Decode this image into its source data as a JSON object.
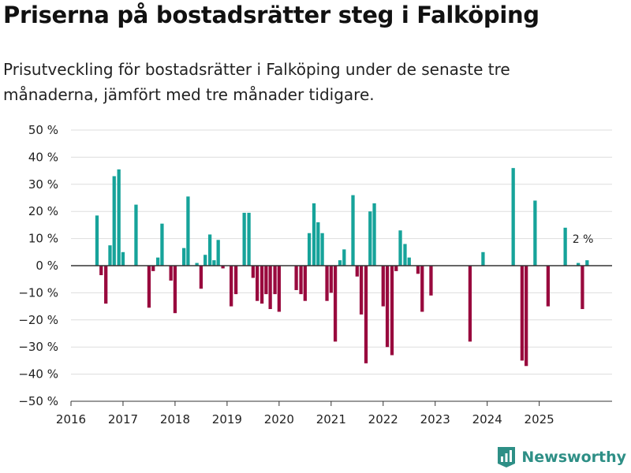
{
  "header": {
    "title": "Priserna på bostadsrätter steg i Falköping",
    "subtitle": "Prisutveckling för bostadsrätter i Falköping under de senaste tre månaderna, jämfört med tre månader tidigare."
  },
  "brand": {
    "name": "Newsworthy",
    "icon": "newsworthy-logo-icon"
  },
  "colors": {
    "positive": "#16a39a",
    "negative": "#990a3e",
    "brand": "#2e8f86",
    "grid": "#dddddd",
    "zero_line": "#333333"
  },
  "chart_data": {
    "type": "bar",
    "title": "Priserna på bostadsrätter steg i Falköping",
    "xlabel": "",
    "ylabel": "",
    "x_unit": "year",
    "xlim": [
      2016,
      2026.4
    ],
    "ylim": [
      -50,
      50
    ],
    "yticks": [
      -50,
      -40,
      -30,
      -20,
      -10,
      0,
      10,
      20,
      30,
      40,
      50
    ],
    "ytick_labels": [
      "−50 %",
      "−40 %",
      "−30 %",
      "−20 %",
      "−10 %",
      "0 %",
      "10 %",
      "20 %",
      "30 %",
      "40 %",
      "50 %"
    ],
    "xticks": [
      2016,
      2017,
      2018,
      2019,
      2020,
      2021,
      2022,
      2023,
      2024,
      2025
    ],
    "xtick_labels": [
      "2016",
      "2017",
      "2018",
      "2019",
      "2020",
      "2021",
      "2022",
      "2023",
      "2024",
      "2025"
    ],
    "grid": true,
    "bar_width_years": 0.065,
    "annotations": [
      {
        "text": "2 %",
        "x": 2025.84,
        "y": 2
      }
    ],
    "series": [
      {
        "name": "Prisutveckling",
        "points": [
          {
            "x": 2016.5,
            "y": 18.5
          },
          {
            "x": 2016.58,
            "y": -3.5
          },
          {
            "x": 2016.67,
            "y": -14
          },
          {
            "x": 2016.75,
            "y": 7.5
          },
          {
            "x": 2016.83,
            "y": 33
          },
          {
            "x": 2016.92,
            "y": 35.5
          },
          {
            "x": 2017.0,
            "y": 5
          },
          {
            "x": 2017.25,
            "y": 22.5
          },
          {
            "x": 2017.5,
            "y": -15.5
          },
          {
            "x": 2017.58,
            "y": -2
          },
          {
            "x": 2017.67,
            "y": 3
          },
          {
            "x": 2017.75,
            "y": 15.5
          },
          {
            "x": 2017.92,
            "y": -5.5
          },
          {
            "x": 2018.0,
            "y": -17.5
          },
          {
            "x": 2018.17,
            "y": 6.5
          },
          {
            "x": 2018.25,
            "y": 25.5
          },
          {
            "x": 2018.42,
            "y": 1
          },
          {
            "x": 2018.5,
            "y": -8.5
          },
          {
            "x": 2018.58,
            "y": 4
          },
          {
            "x": 2018.67,
            "y": 11.5
          },
          {
            "x": 2018.75,
            "y": 2
          },
          {
            "x": 2018.83,
            "y": 9.5
          },
          {
            "x": 2018.92,
            "y": -1
          },
          {
            "x": 2019.08,
            "y": -15
          },
          {
            "x": 2019.17,
            "y": -10.5
          },
          {
            "x": 2019.33,
            "y": 19.5
          },
          {
            "x": 2019.42,
            "y": 19.5
          },
          {
            "x": 2019.5,
            "y": -4.5
          },
          {
            "x": 2019.58,
            "y": -13
          },
          {
            "x": 2019.67,
            "y": -14
          },
          {
            "x": 2019.75,
            "y": -10.5
          },
          {
            "x": 2019.83,
            "y": -16
          },
          {
            "x": 2019.92,
            "y": -10.5
          },
          {
            "x": 2020.0,
            "y": -17
          },
          {
            "x": 2020.33,
            "y": -9
          },
          {
            "x": 2020.42,
            "y": -10.5
          },
          {
            "x": 2020.5,
            "y": -13
          },
          {
            "x": 2020.58,
            "y": 12
          },
          {
            "x": 2020.67,
            "y": 23
          },
          {
            "x": 2020.75,
            "y": 16
          },
          {
            "x": 2020.83,
            "y": 12
          },
          {
            "x": 2020.92,
            "y": -13
          },
          {
            "x": 2021.0,
            "y": -10
          },
          {
            "x": 2021.08,
            "y": -28
          },
          {
            "x": 2021.17,
            "y": 2
          },
          {
            "x": 2021.25,
            "y": 6
          },
          {
            "x": 2021.42,
            "y": 26
          },
          {
            "x": 2021.5,
            "y": -4
          },
          {
            "x": 2021.58,
            "y": -18
          },
          {
            "x": 2021.67,
            "y": -36
          },
          {
            "x": 2021.75,
            "y": 20
          },
          {
            "x": 2021.83,
            "y": 23
          },
          {
            "x": 2022.0,
            "y": -15
          },
          {
            "x": 2022.08,
            "y": -30
          },
          {
            "x": 2022.17,
            "y": -33
          },
          {
            "x": 2022.25,
            "y": -2
          },
          {
            "x": 2022.33,
            "y": 13
          },
          {
            "x": 2022.42,
            "y": 8
          },
          {
            "x": 2022.5,
            "y": 3
          },
          {
            "x": 2022.67,
            "y": -3
          },
          {
            "x": 2022.75,
            "y": -17
          },
          {
            "x": 2022.92,
            "y": -11
          },
          {
            "x": 2023.67,
            "y": -28
          },
          {
            "x": 2023.92,
            "y": 5
          },
          {
            "x": 2024.5,
            "y": 36
          },
          {
            "x": 2024.67,
            "y": -35
          },
          {
            "x": 2024.75,
            "y": -37
          },
          {
            "x": 2024.92,
            "y": 24
          },
          {
            "x": 2025.17,
            "y": -15
          },
          {
            "x": 2025.5,
            "y": 14
          },
          {
            "x": 2025.75,
            "y": 1
          },
          {
            "x": 2025.83,
            "y": -16
          },
          {
            "x": 2025.92,
            "y": 2
          }
        ]
      }
    ]
  }
}
